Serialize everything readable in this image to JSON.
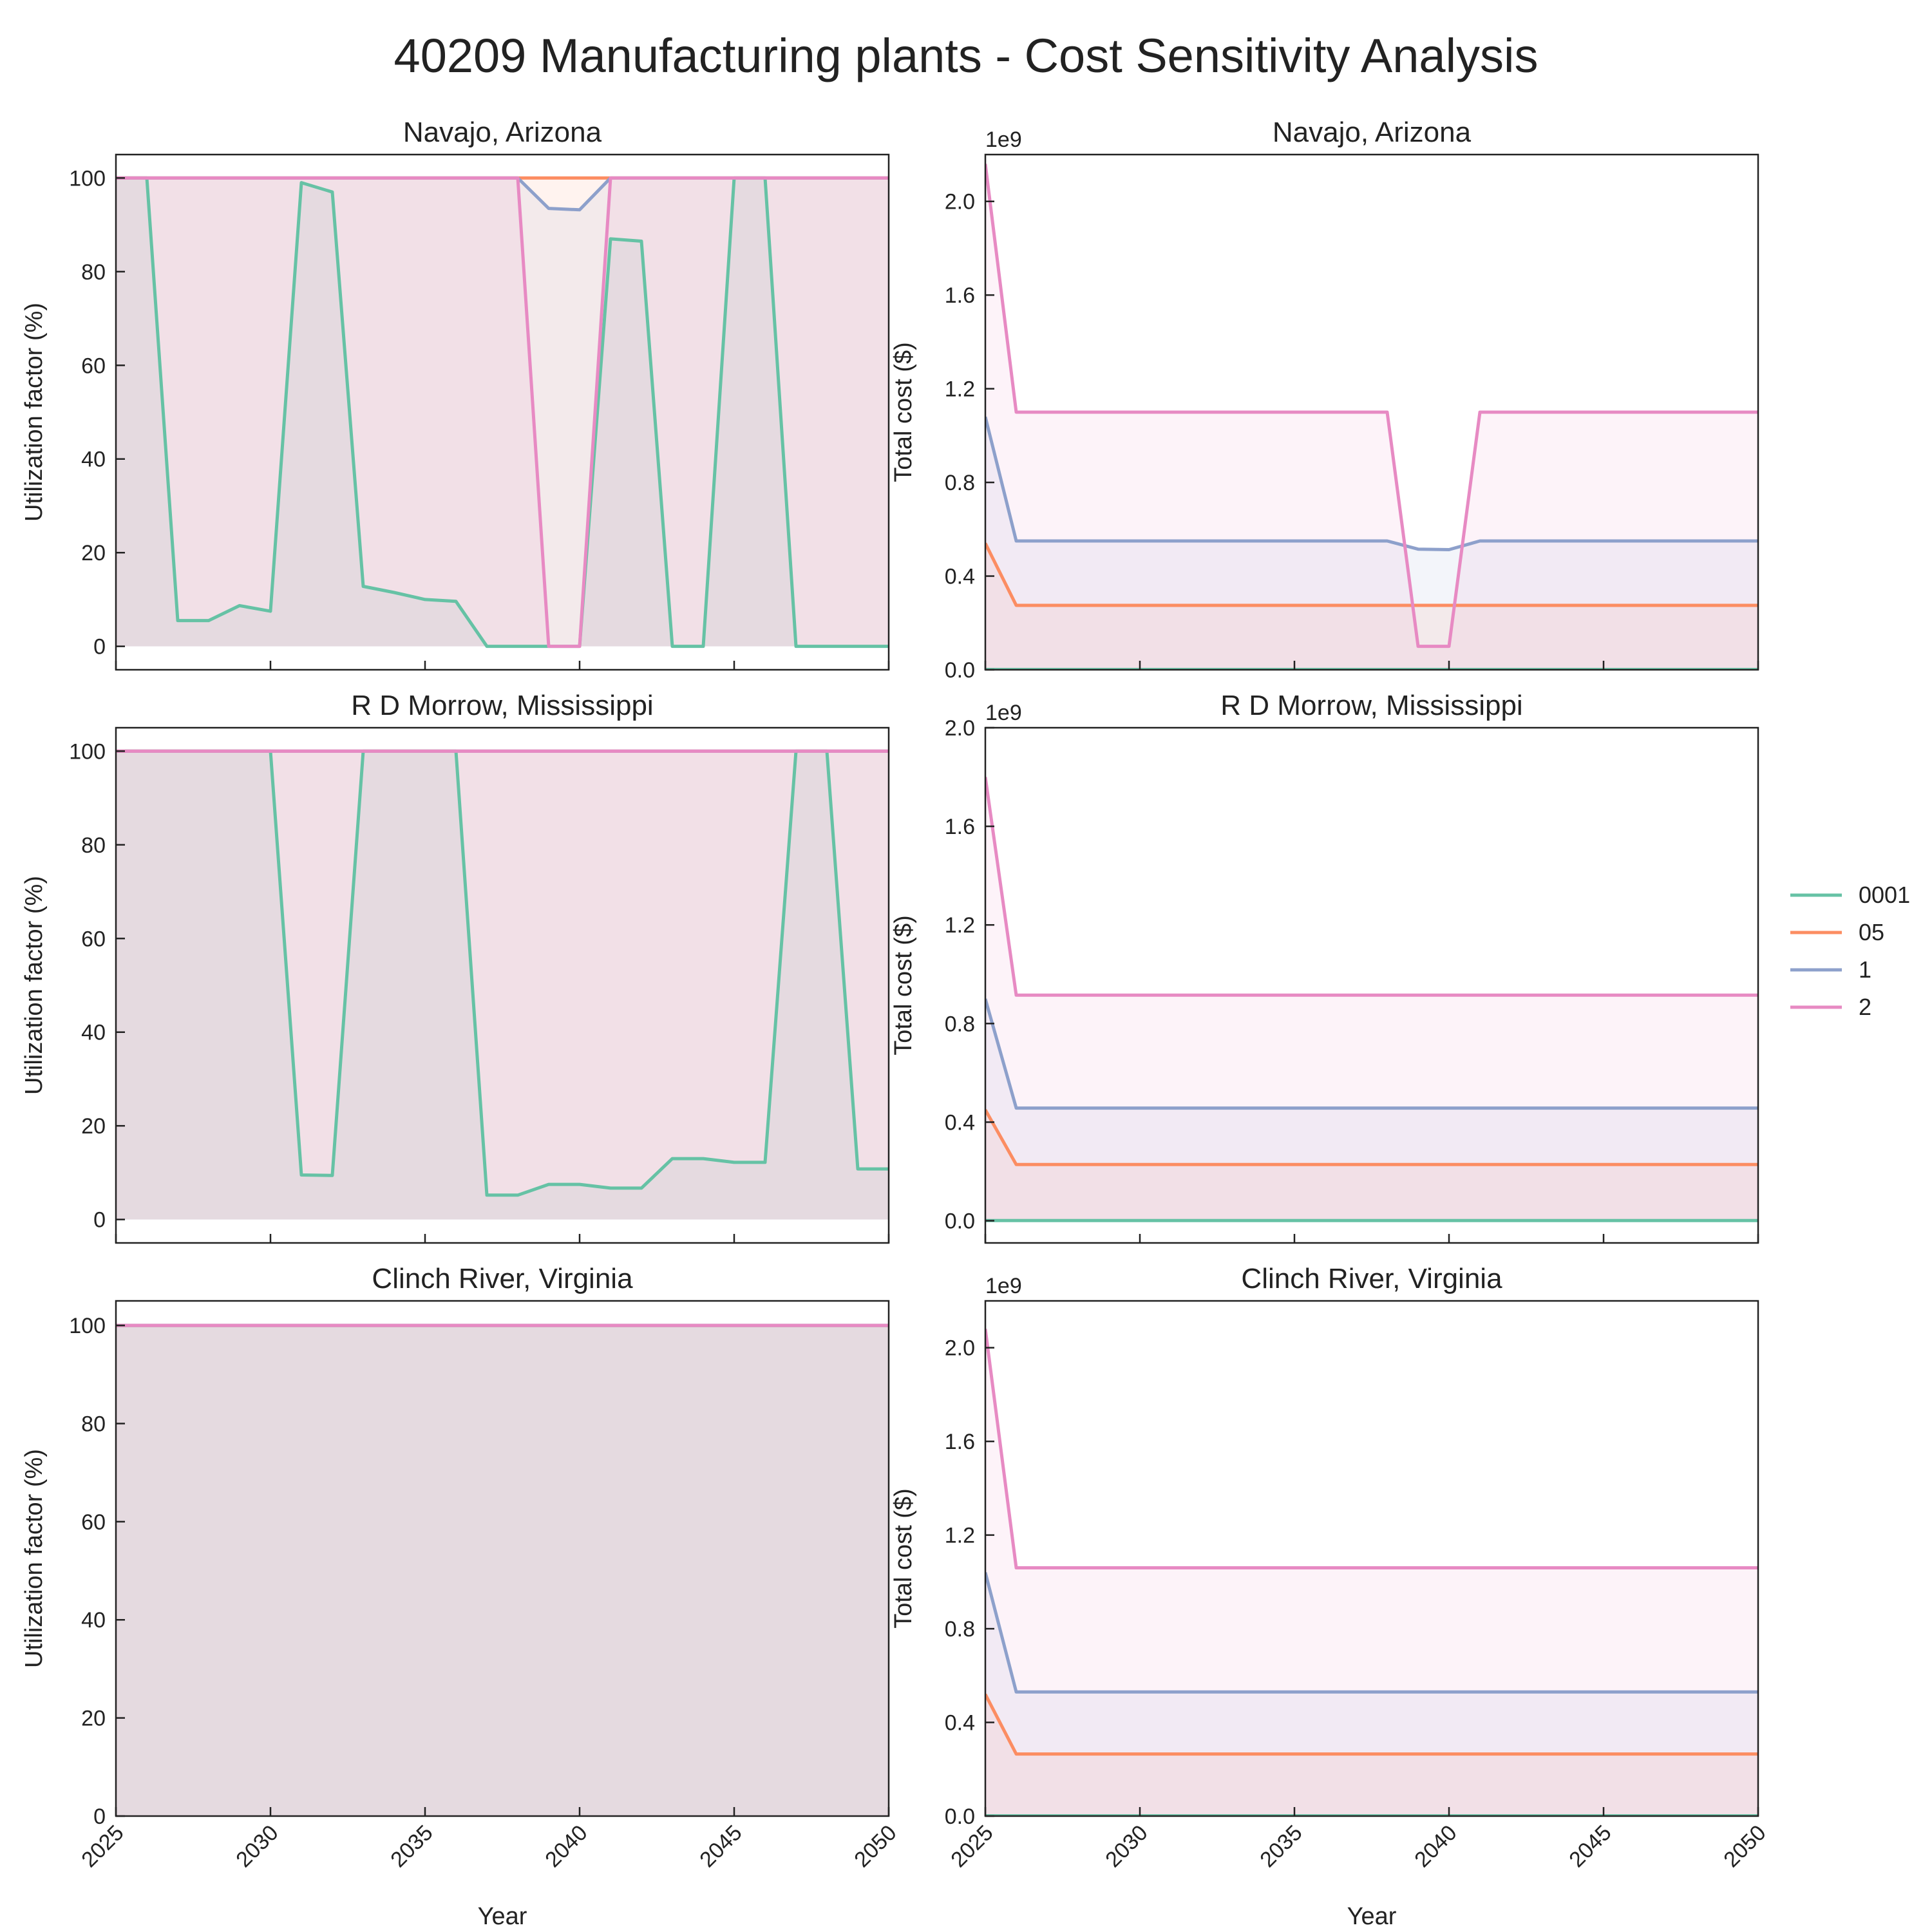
{
  "figure": {
    "title": "40209 Manufacturing plants - Cost Sensitivity Analysis"
  },
  "legend": {
    "placement": "right",
    "entries": [
      {
        "label": "0001",
        "color": "#66c2a5"
      },
      {
        "label": "05",
        "color": "#fc8d62"
      },
      {
        "label": "1",
        "color": "#8da0cb"
      },
      {
        "label": "2",
        "color": "#e78ac3"
      }
    ]
  },
  "chart_data": [
    {
      "type": "area",
      "title": "Navajo, Arizona",
      "xlabel": "",
      "ylabel": "Utilization factor (%)",
      "xlim": [
        2025,
        2050
      ],
      "ylim": [
        -5,
        105
      ],
      "yticks": [
        0,
        20,
        40,
        60,
        80,
        100
      ],
      "ytick_labels": [
        "0",
        "20",
        "40",
        "60",
        "80",
        "100"
      ],
      "xticks": [
        2025,
        2030,
        2035,
        2040,
        2045,
        2050
      ],
      "xtick_labels": [],
      "x": [
        2025,
        2026,
        2027,
        2028,
        2029,
        2030,
        2031,
        2032,
        2033,
        2034,
        2035,
        2036,
        2037,
        2038,
        2039,
        2040,
        2041,
        2042,
        2043,
        2044,
        2045,
        2046,
        2047,
        2048,
        2049,
        2050
      ],
      "series": [
        {
          "name": "0001",
          "values": [
            100,
            100,
            5.5,
            5.5,
            8.7,
            7.5,
            99,
            97,
            12.8,
            11.5,
            10,
            9.6,
            0,
            0,
            0,
            0,
            87,
            86.5,
            0,
            0,
            100,
            100,
            0,
            0,
            0,
            0
          ]
        },
        {
          "name": "05",
          "values": [
            100,
            100,
            100,
            100,
            100,
            100,
            100,
            100,
            100,
            100,
            100,
            100,
            100,
            100,
            100,
            100,
            100,
            100,
            100,
            100,
            100,
            100,
            100,
            100,
            100,
            100
          ]
        },
        {
          "name": "1",
          "values": [
            100,
            100,
            100,
            100,
            100,
            100,
            100,
            100,
            100,
            100,
            100,
            100,
            100,
            100,
            93.5,
            93.2,
            100,
            100,
            100,
            100,
            100,
            100,
            100,
            100,
            100,
            100
          ]
        },
        {
          "name": "2",
          "values": [
            100,
            100,
            100,
            100,
            100,
            100,
            100,
            100,
            100,
            100,
            100,
            100,
            100,
            100,
            0,
            0,
            100,
            100,
            100,
            100,
            100,
            100,
            100,
            100,
            100,
            100
          ]
        }
      ],
      "grid": false
    },
    {
      "type": "area",
      "title": "Navajo, Arizona",
      "xlabel": "",
      "ylabel": "Total cost ($)",
      "scale_label": "1e9",
      "xlim": [
        2025,
        2050
      ],
      "ylim": [
        0,
        2.2
      ],
      "yticks": [
        0,
        0.4,
        0.8,
        1.2,
        1.6,
        2.0
      ],
      "ytick_labels": [
        "0.0",
        "0.4",
        "0.8",
        "1.2",
        "1.6",
        "2.0"
      ],
      "xticks": [
        2025,
        2030,
        2035,
        2040,
        2045,
        2050
      ],
      "xtick_labels": [],
      "x": [
        2025,
        2026,
        2027,
        2028,
        2029,
        2030,
        2031,
        2032,
        2033,
        2034,
        2035,
        2036,
        2037,
        2038,
        2039,
        2040,
        2041,
        2042,
        2043,
        2044,
        2045,
        2046,
        2047,
        2048,
        2049,
        2050
      ],
      "series": [
        {
          "name": "0001",
          "values": [
            0.001,
            0.001,
            0.001,
            0.001,
            0.001,
            0.001,
            0.001,
            0.001,
            0.001,
            0.001,
            0.001,
            0.001,
            0.001,
            0.001,
            0.001,
            0.001,
            0.001,
            0.001,
            0.001,
            0.001,
            0.001,
            0.001,
            0.001,
            0.001,
            0.001,
            0.001
          ]
        },
        {
          "name": "05",
          "values": [
            0.54,
            0.275,
            0.275,
            0.275,
            0.275,
            0.275,
            0.275,
            0.275,
            0.275,
            0.275,
            0.275,
            0.275,
            0.275,
            0.275,
            0.275,
            0.275,
            0.275,
            0.275,
            0.275,
            0.275,
            0.275,
            0.275,
            0.275,
            0.275,
            0.275,
            0.275
          ]
        },
        {
          "name": "1",
          "values": [
            1.08,
            0.55,
            0.55,
            0.55,
            0.55,
            0.55,
            0.55,
            0.55,
            0.55,
            0.55,
            0.55,
            0.55,
            0.55,
            0.55,
            0.515,
            0.513,
            0.55,
            0.55,
            0.55,
            0.55,
            0.55,
            0.55,
            0.55,
            0.55,
            0.55,
            0.55
          ]
        },
        {
          "name": "2",
          "values": [
            2.16,
            1.1,
            1.1,
            1.1,
            1.1,
            1.1,
            1.1,
            1.1,
            1.1,
            1.1,
            1.1,
            1.1,
            1.1,
            1.1,
            0.1,
            0.1,
            1.1,
            1.1,
            1.1,
            1.1,
            1.1,
            1.1,
            1.1,
            1.1,
            1.1,
            1.1
          ]
        }
      ],
      "grid": false
    },
    {
      "type": "area",
      "title": "R D Morrow, Mississippi",
      "xlabel": "",
      "ylabel": "Utilization factor (%)",
      "xlim": [
        2025,
        2050
      ],
      "ylim": [
        -5,
        105
      ],
      "yticks": [
        0,
        20,
        40,
        60,
        80,
        100
      ],
      "ytick_labels": [
        "0",
        "20",
        "40",
        "60",
        "80",
        "100"
      ],
      "xticks": [
        2025,
        2030,
        2035,
        2040,
        2045,
        2050
      ],
      "xtick_labels": [],
      "x": [
        2025,
        2026,
        2027,
        2028,
        2029,
        2030,
        2031,
        2032,
        2033,
        2034,
        2035,
        2036,
        2037,
        2038,
        2039,
        2040,
        2041,
        2042,
        2043,
        2044,
        2045,
        2046,
        2047,
        2048,
        2049,
        2050
      ],
      "series": [
        {
          "name": "0001",
          "values": [
            100,
            100,
            100,
            100,
            100,
            100,
            9.5,
            9.4,
            100,
            100,
            100,
            100,
            5.2,
            5.2,
            7.5,
            7.5,
            6.7,
            6.7,
            13,
            13,
            12.2,
            12.2,
            100,
            100,
            10.8,
            10.8
          ]
        },
        {
          "name": "05",
          "values": [
            100,
            100,
            100,
            100,
            100,
            100,
            100,
            100,
            100,
            100,
            100,
            100,
            100,
            100,
            100,
            100,
            100,
            100,
            100,
            100,
            100,
            100,
            100,
            100,
            100,
            100
          ]
        },
        {
          "name": "1",
          "values": [
            100,
            100,
            100,
            100,
            100,
            100,
            100,
            100,
            100,
            100,
            100,
            100,
            100,
            100,
            100,
            100,
            100,
            100,
            100,
            100,
            100,
            100,
            100,
            100,
            100,
            100
          ]
        },
        {
          "name": "2",
          "values": [
            100,
            100,
            100,
            100,
            100,
            100,
            100,
            100,
            100,
            100,
            100,
            100,
            100,
            100,
            100,
            100,
            100,
            100,
            100,
            100,
            100,
            100,
            100,
            100,
            100,
            100
          ]
        }
      ],
      "grid": false
    },
    {
      "type": "area",
      "title": "R D Morrow, Mississippi",
      "xlabel": "",
      "ylabel": "Total cost ($)",
      "scale_label": "1e9",
      "xlim": [
        2025,
        2050
      ],
      "ylim": [
        -0.09,
        2.0
      ],
      "yticks": [
        0,
        0.4,
        0.8,
        1.2,
        1.6,
        2.0
      ],
      "ytick_labels": [
        "0.0",
        "0.4",
        "0.8",
        "1.2",
        "1.6",
        "2.0"
      ],
      "xticks": [
        2025,
        2030,
        2035,
        2040,
        2045,
        2050
      ],
      "xtick_labels": [],
      "x": [
        2025,
        2026,
        2027,
        2028,
        2029,
        2030,
        2031,
        2032,
        2033,
        2034,
        2035,
        2036,
        2037,
        2038,
        2039,
        2040,
        2041,
        2042,
        2043,
        2044,
        2045,
        2046,
        2047,
        2048,
        2049,
        2050
      ],
      "series": [
        {
          "name": "0001",
          "values": [
            0.001,
            0.001,
            0.001,
            0.001,
            0.001,
            0.001,
            0.001,
            0.001,
            0.001,
            0.001,
            0.001,
            0.001,
            0.001,
            0.001,
            0.001,
            0.001,
            0.001,
            0.001,
            0.001,
            0.001,
            0.001,
            0.001,
            0.001,
            0.001,
            0.001,
            0.001
          ]
        },
        {
          "name": "05",
          "values": [
            0.45,
            0.228,
            0.228,
            0.228,
            0.228,
            0.228,
            0.228,
            0.228,
            0.228,
            0.228,
            0.228,
            0.228,
            0.228,
            0.228,
            0.228,
            0.228,
            0.228,
            0.228,
            0.228,
            0.228,
            0.228,
            0.228,
            0.228,
            0.228,
            0.228,
            0.228
          ]
        },
        {
          "name": "1",
          "values": [
            0.9,
            0.457,
            0.457,
            0.457,
            0.457,
            0.457,
            0.457,
            0.457,
            0.457,
            0.457,
            0.457,
            0.457,
            0.457,
            0.457,
            0.457,
            0.457,
            0.457,
            0.457,
            0.457,
            0.457,
            0.457,
            0.457,
            0.457,
            0.457,
            0.457,
            0.457
          ]
        },
        {
          "name": "2",
          "values": [
            1.8,
            0.915,
            0.915,
            0.915,
            0.915,
            0.915,
            0.915,
            0.915,
            0.915,
            0.915,
            0.915,
            0.915,
            0.915,
            0.915,
            0.915,
            0.915,
            0.915,
            0.915,
            0.915,
            0.915,
            0.915,
            0.915,
            0.915,
            0.915,
            0.915,
            0.915
          ]
        }
      ],
      "grid": false
    },
    {
      "type": "area",
      "title": "Clinch River, Virginia",
      "xlabel": "Year",
      "ylabel": "Utilization factor (%)",
      "xlim": [
        2025,
        2050
      ],
      "ylim": [
        0,
        105
      ],
      "yticks": [
        0,
        20,
        40,
        60,
        80,
        100
      ],
      "ytick_labels": [
        "0",
        "20",
        "40",
        "60",
        "80",
        "100"
      ],
      "xticks": [
        2025,
        2030,
        2035,
        2040,
        2045,
        2050
      ],
      "xtick_labels": [
        "2025",
        "2030",
        "2035",
        "2040",
        "2045",
        "2050"
      ],
      "x": [
        2025,
        2026,
        2027,
        2028,
        2029,
        2030,
        2031,
        2032,
        2033,
        2034,
        2035,
        2036,
        2037,
        2038,
        2039,
        2040,
        2041,
        2042,
        2043,
        2044,
        2045,
        2046,
        2047,
        2048,
        2049,
        2050
      ],
      "series": [
        {
          "name": "0001",
          "values": [
            100,
            100,
            100,
            100,
            100,
            100,
            100,
            100,
            100,
            100,
            100,
            100,
            100,
            100,
            100,
            100,
            100,
            100,
            100,
            100,
            100,
            100,
            100,
            100,
            100,
            100
          ]
        },
        {
          "name": "05",
          "values": [
            100,
            100,
            100,
            100,
            100,
            100,
            100,
            100,
            100,
            100,
            100,
            100,
            100,
            100,
            100,
            100,
            100,
            100,
            100,
            100,
            100,
            100,
            100,
            100,
            100,
            100
          ]
        },
        {
          "name": "1",
          "values": [
            100,
            100,
            100,
            100,
            100,
            100,
            100,
            100,
            100,
            100,
            100,
            100,
            100,
            100,
            100,
            100,
            100,
            100,
            100,
            100,
            100,
            100,
            100,
            100,
            100,
            100
          ]
        },
        {
          "name": "2",
          "values": [
            100,
            100,
            100,
            100,
            100,
            100,
            100,
            100,
            100,
            100,
            100,
            100,
            100,
            100,
            100,
            100,
            100,
            100,
            100,
            100,
            100,
            100,
            100,
            100,
            100,
            100
          ]
        }
      ],
      "grid": false
    },
    {
      "type": "area",
      "title": "Clinch River, Virginia",
      "xlabel": "Year",
      "ylabel": "Total cost ($)",
      "scale_label": "1e9",
      "xlim": [
        2025,
        2050
      ],
      "ylim": [
        0,
        2.2
      ],
      "yticks": [
        0,
        0.4,
        0.8,
        1.2,
        1.6,
        2.0
      ],
      "ytick_labels": [
        "0.0",
        "0.4",
        "0.8",
        "1.2",
        "1.6",
        "2.0"
      ],
      "xticks": [
        2025,
        2030,
        2035,
        2040,
        2045,
        2050
      ],
      "xtick_labels": [
        "2025",
        "2030",
        "2035",
        "2040",
        "2045",
        "2050"
      ],
      "x": [
        2025,
        2026,
        2027,
        2028,
        2029,
        2030,
        2031,
        2032,
        2033,
        2034,
        2035,
        2036,
        2037,
        2038,
        2039,
        2040,
        2041,
        2042,
        2043,
        2044,
        2045,
        2046,
        2047,
        2048,
        2049,
        2050
      ],
      "series": [
        {
          "name": "0001",
          "values": [
            0.001,
            0.001,
            0.001,
            0.001,
            0.001,
            0.001,
            0.001,
            0.001,
            0.001,
            0.001,
            0.001,
            0.001,
            0.001,
            0.001,
            0.001,
            0.001,
            0.001,
            0.001,
            0.001,
            0.001,
            0.001,
            0.001,
            0.001,
            0.001,
            0.001,
            0.001
          ]
        },
        {
          "name": "05",
          "values": [
            0.52,
            0.265,
            0.265,
            0.265,
            0.265,
            0.265,
            0.265,
            0.265,
            0.265,
            0.265,
            0.265,
            0.265,
            0.265,
            0.265,
            0.265,
            0.265,
            0.265,
            0.265,
            0.265,
            0.265,
            0.265,
            0.265,
            0.265,
            0.265,
            0.265,
            0.265
          ]
        },
        {
          "name": "1",
          "values": [
            1.04,
            0.53,
            0.53,
            0.53,
            0.53,
            0.53,
            0.53,
            0.53,
            0.53,
            0.53,
            0.53,
            0.53,
            0.53,
            0.53,
            0.53,
            0.53,
            0.53,
            0.53,
            0.53,
            0.53,
            0.53,
            0.53,
            0.53,
            0.53,
            0.53,
            0.53
          ]
        },
        {
          "name": "2",
          "values": [
            2.08,
            1.06,
            1.06,
            1.06,
            1.06,
            1.06,
            1.06,
            1.06,
            1.06,
            1.06,
            1.06,
            1.06,
            1.06,
            1.06,
            1.06,
            1.06,
            1.06,
            1.06,
            1.06,
            1.06,
            1.06,
            1.06,
            1.06,
            1.06,
            1.06,
            1.06
          ]
        }
      ],
      "grid": false
    }
  ]
}
